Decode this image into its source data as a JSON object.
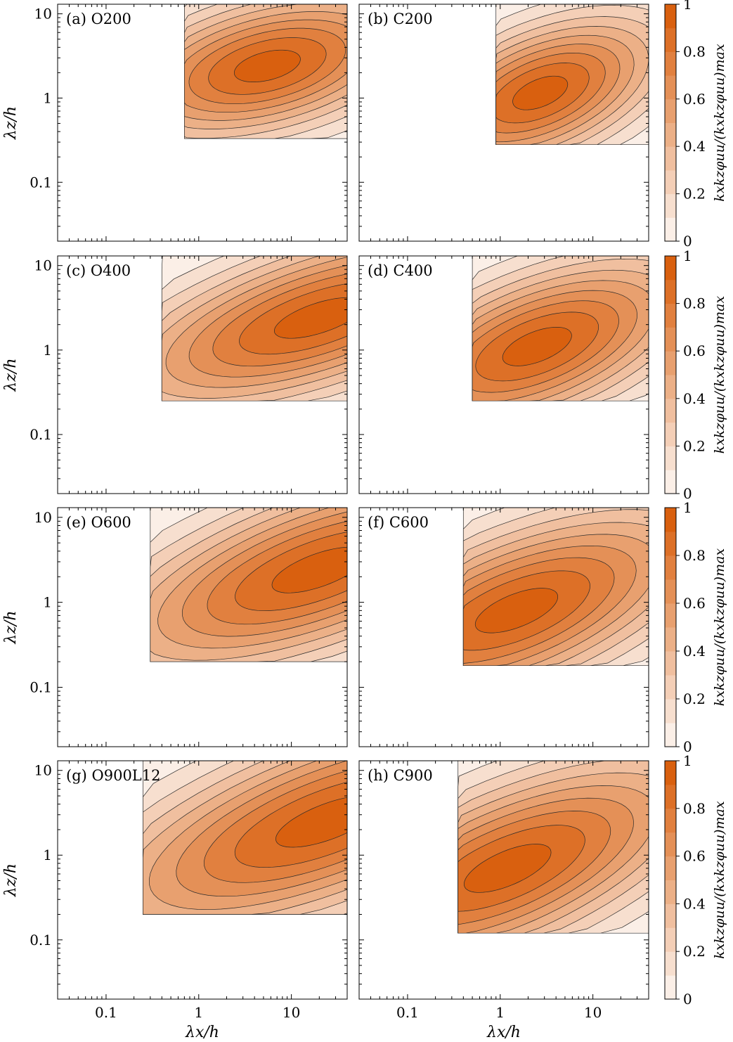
{
  "chart_data": [
    {
      "type": "heatmap",
      "panel_label": "(a) O200",
      "xlabel": "",
      "ylabel": "λz/h",
      "xscale": "log",
      "yscale": "log",
      "xlim": [
        0.03,
        40
      ],
      "ylim": [
        0.02,
        13
      ],
      "x_ticks": [
        "0.1",
        "1",
        "10"
      ],
      "y_ticks": [
        "0.1",
        "1",
        "10"
      ],
      "peak": {
        "x": 5.5,
        "y": 2.4
      },
      "width": [
        1.15,
        0.52
      ],
      "tilt": 0.28,
      "field_extent": {
        "x": [
          0.7,
          40
        ],
        "y": [
          0.33,
          13
        ]
      }
    },
    {
      "type": "heatmap",
      "panel_label": "(b) C200",
      "xlabel": "",
      "ylabel": "",
      "xscale": "log",
      "yscale": "log",
      "xlim": [
        0.03,
        40
      ],
      "ylim": [
        0.02,
        13
      ],
      "x_ticks": [
        "0.1",
        "1",
        "10"
      ],
      "y_ticks": [],
      "peak": {
        "x": 2.7,
        "y": 1.15
      },
      "width": [
        1.0,
        0.5
      ],
      "tilt": 0.45,
      "field_extent": {
        "x": [
          0.9,
          30
        ],
        "y": [
          0.28,
          13
        ]
      }
    },
    {
      "type": "heatmap",
      "panel_label": "(c) O400",
      "xlabel": "",
      "ylabel": "λz/h",
      "xscale": "log",
      "yscale": "log",
      "xlim": [
        0.03,
        40
      ],
      "ylim": [
        0.02,
        13
      ],
      "x_ticks": [
        "0.1",
        "1",
        "10"
      ],
      "y_ticks": [
        "0.1",
        "1",
        "10"
      ],
      "peak": {
        "x": 20,
        "y": 2.4
      },
      "width": [
        1.6,
        0.55
      ],
      "tilt": 0.35,
      "field_extent": {
        "x": [
          0.4,
          40
        ],
        "y": [
          0.25,
          13
        ]
      }
    },
    {
      "type": "heatmap",
      "panel_label": "(d) C400",
      "xlabel": "",
      "ylabel": "",
      "xscale": "log",
      "yscale": "log",
      "xlim": [
        0.03,
        40
      ],
      "ylim": [
        0.02,
        13
      ],
      "x_ticks": [
        "0.1",
        "1",
        "10"
      ],
      "y_ticks": [],
      "peak": {
        "x": 2.5,
        "y": 1.1
      },
      "width": [
        1.25,
        0.55
      ],
      "tilt": 0.42,
      "field_extent": {
        "x": [
          0.5,
          40
        ],
        "y": [
          0.25,
          13
        ]
      }
    },
    {
      "type": "heatmap",
      "panel_label": "(e) O600",
      "xlabel": "",
      "ylabel": "λz/h",
      "xscale": "log",
      "yscale": "log",
      "xlim": [
        0.03,
        40
      ],
      "ylim": [
        0.02,
        13
      ],
      "x_ticks": [
        "0.1",
        "1",
        "10"
      ],
      "y_ticks": [
        "0.1",
        "1",
        "10"
      ],
      "peak": {
        "x": 20,
        "y": 2.4
      },
      "width": [
        1.7,
        0.6
      ],
      "tilt": 0.38,
      "field_extent": {
        "x": [
          0.3,
          40
        ],
        "y": [
          0.2,
          13
        ]
      }
    },
    {
      "type": "heatmap",
      "panel_label": "(f) C600",
      "xlabel": "",
      "ylabel": "",
      "xscale": "log",
      "yscale": "log",
      "xlim": [
        0.03,
        40
      ],
      "ylim": [
        0.02,
        13
      ],
      "x_ticks": [
        "0.1",
        "1",
        "10"
      ],
      "y_ticks": [],
      "peak": {
        "x": 1.5,
        "y": 0.8
      },
      "width": [
        1.5,
        0.6
      ],
      "tilt": 0.42,
      "field_extent": {
        "x": [
          0.4,
          40
        ],
        "y": [
          0.18,
          13
        ]
      }
    },
    {
      "type": "heatmap",
      "panel_label": "(g) O900L12",
      "xlabel": "λx/h",
      "ylabel": "λz/h",
      "xscale": "log",
      "yscale": "log",
      "xlim": [
        0.03,
        40
      ],
      "ylim": [
        0.02,
        13
      ],
      "x_ticks": [
        "0.1",
        "1",
        "10"
      ],
      "y_ticks": [
        "0.1",
        "1",
        "10"
      ],
      "peak": {
        "x": 25,
        "y": 2.5
      },
      "width": [
        1.9,
        0.65
      ],
      "tilt": 0.4,
      "field_extent": {
        "x": [
          0.25,
          40
        ],
        "y": [
          0.2,
          13
        ]
      }
    },
    {
      "type": "heatmap",
      "panel_label": "(h) C900",
      "xlabel": "λx/h",
      "ylabel": "",
      "xscale": "log",
      "yscale": "log",
      "xlim": [
        0.03,
        40
      ],
      "ylim": [
        0.02,
        13
      ],
      "x_ticks": [
        "0.1",
        "1",
        "10"
      ],
      "y_ticks": [],
      "peak": {
        "x": 1.2,
        "y": 0.7
      },
      "width": [
        1.6,
        0.62
      ],
      "tilt": 0.45,
      "field_extent": {
        "x": [
          0.35,
          40
        ],
        "y": [
          0.12,
          13
        ]
      }
    }
  ],
  "colorbar": {
    "label": "kxkzφuu/(kxkzφuu)max",
    "ticks": [
      "0",
      "0.2",
      "0.4",
      "0.6",
      "0.8",
      "1"
    ],
    "range": [
      0,
      1
    ],
    "levels": 10,
    "color_low": "#ffffff",
    "color_high": "#d9600f"
  }
}
